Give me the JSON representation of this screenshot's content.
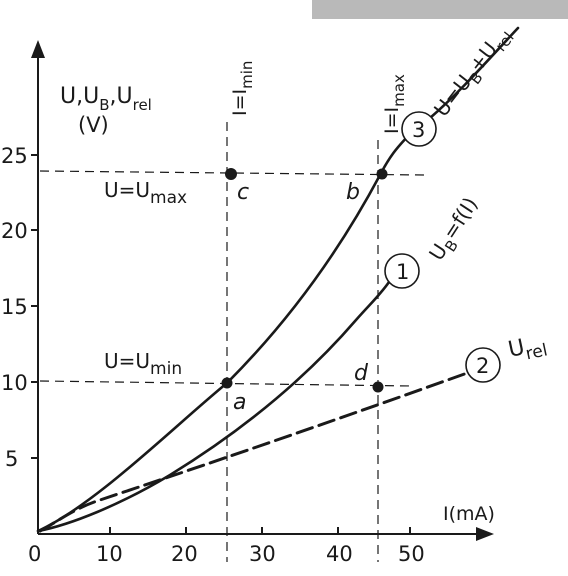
{
  "header_bar_color": "#b9b9b9",
  "axis": {
    "y_title_line1": "U,U",
    "y_title_sub1": "B",
    "y_title_mid": ",U",
    "y_title_sub2": "rel",
    "y_unit": "(V)",
    "x_title": "I(mA)",
    "y_ticks": [
      "5",
      "10",
      "15",
      "20",
      "25"
    ],
    "x_ticks": [
      "0",
      "10",
      "20",
      "30",
      "40",
      "50"
    ]
  },
  "vertical_labels": {
    "imin_main": "I=I",
    "imin_sub": "min",
    "imax_main": "I=I",
    "imax_sub": "max"
  },
  "level_labels": {
    "umax_main": "U=U",
    "umax_sub": "max",
    "umin_main": "U=U",
    "umin_sub": "min"
  },
  "points": {
    "a": "a",
    "b": "b",
    "c": "c",
    "d": "d"
  },
  "curves": {
    "c1_number": "1",
    "c1_label_main": "U",
    "c1_label_sub": "B",
    "c1_label_rest": "=f(I)",
    "c2_number": "2",
    "c2_label_main": "U",
    "c2_label_sub": "rel",
    "c3_number": "3",
    "c3_label_main": "U=U",
    "c3_label_sub": "B",
    "c3_label_rest": "+U",
    "c3_label_sub2": "rel"
  }
}
